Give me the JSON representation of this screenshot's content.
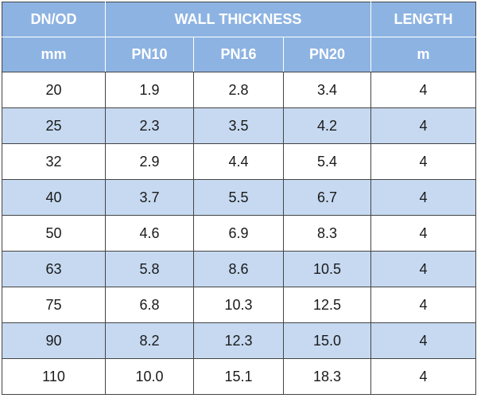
{
  "table": {
    "header": [
      [
        "DN/OD",
        "WALL THICKNESS",
        "LENGTH"
      ],
      [
        "mm",
        "PN10",
        "PN16",
        "PN20",
        "m"
      ]
    ],
    "rows": [
      [
        "20",
        "1.9",
        "2.8",
        "3.4",
        "4"
      ],
      [
        "25",
        "2.3",
        "3.5",
        "4.2",
        "4"
      ],
      [
        "32",
        "2.9",
        "4.4",
        "5.4",
        "4"
      ],
      [
        "40",
        "3.7",
        "5.5",
        "6.7",
        "4"
      ],
      [
        "50",
        "4.6",
        "6.9",
        "8.3",
        "4"
      ],
      [
        "63",
        "5.8",
        "8.6",
        "10.5",
        "4"
      ],
      [
        "75",
        "6.8",
        "10.3",
        "12.5",
        "4"
      ],
      [
        "90",
        "8.2",
        "12.3",
        "15.0",
        "4"
      ],
      [
        "110",
        "10.0",
        "15.1",
        "18.3",
        "4"
      ]
    ]
  }
}
